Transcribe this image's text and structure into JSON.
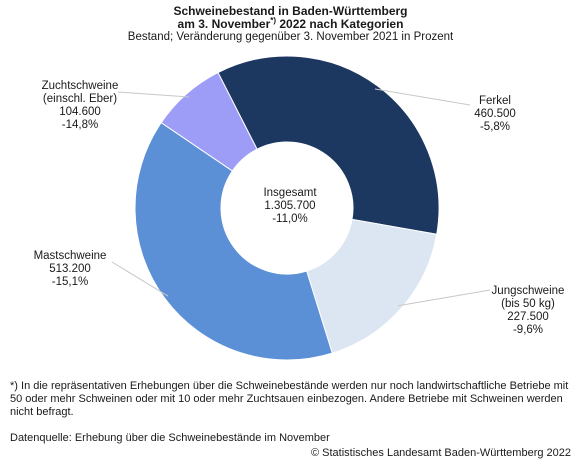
{
  "title_line1": "Schweinebestand in Baden-Württemberg",
  "title_line2_pre": "am 3. November",
  "title_line2_sup": "*)",
  "title_line2_post": " 2022 nach Kategorien",
  "subtitle": "Bestand; Veränderung gegenüber 3. November 2021 in Prozent",
  "chart_data": {
    "type": "pie",
    "variant": "donut",
    "center": {
      "line1": "Insgesamt",
      "line2": "1.305.700",
      "line3": "-11,0%"
    },
    "total": 1305700,
    "slices": [
      {
        "label_lines": [
          "Ferkel"
        ],
        "value": 460500,
        "value_text": "460.500",
        "change": "-5,8%",
        "color": "#1c3760"
      },
      {
        "label_lines": [
          "Jungschweine",
          "(bis 50 kg)"
        ],
        "value": 227500,
        "value_text": "227.500",
        "change": "-9,6%",
        "color": "#dce5f2"
      },
      {
        "label_lines": [
          "Mastschweine"
        ],
        "value": 513200,
        "value_text": "513.200",
        "change": "-15,1%",
        "color": "#5b8fd6"
      },
      {
        "label_lines": [
          "Zuchtschweine",
          "(einschl. Eber)"
        ],
        "value": 104600,
        "value_text": "104.600",
        "change": "-14,8%",
        "color": "#9d9cf7"
      }
    ]
  },
  "footnote": {
    "marker": "*)",
    "text": " In die repräsentativen Erhebungen über die Schweinebestände werden nur noch landwirtschaftliche Betriebe mit 50 oder mehr Schweinen oder mit 10 oder mehr Zuchtsauen einbezogen. Andere Betriebe mit Schweinen werden nicht befragt."
  },
  "source": "Datenquelle: Erhebung über die Schweinebestände im November",
  "copyright": "© Statistisches Landesamt Baden-Württemberg 2022"
}
